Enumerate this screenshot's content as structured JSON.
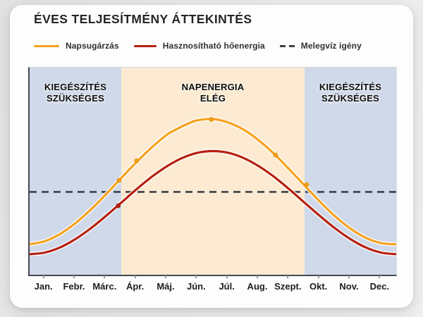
{
  "card": {
    "title": "ÉVES TELJESÍTMÉNY ÁTTEKINTÉS"
  },
  "legend": {
    "items": [
      {
        "label": "Napsugárzás",
        "color": "#f7a11d",
        "style": "solid"
      },
      {
        "label": "Hasznosítható hőenergia",
        "color": "#b7200f",
        "style": "solid"
      },
      {
        "label": "Melegvíz igény",
        "color": "#3c4148",
        "style": "dashed"
      }
    ]
  },
  "colors": {
    "zone_blue": "#cfd9ea",
    "zone_peach": "#fcebd2",
    "solar_orange": "#f7a11d",
    "thermal_red": "#b7200f",
    "demand_dash": "#3c4148",
    "axis": "#45494f",
    "card_background": "#fdfdfd",
    "page_background": "#ebeaea"
  },
  "chart_data": {
    "type": "line",
    "title": "ÉVES TELJESÍTMÉNY ÁTTEKINTÉS",
    "xlabel": "",
    "ylabel": "",
    "y_range_percent": [
      0,
      100
    ],
    "grid": false,
    "legend_position": "top",
    "x_categories": [
      "Jan.",
      "Febr.",
      "Márc.",
      "Ápr.",
      "Máj.",
      "Jún.",
      "Júl.",
      "Aug.",
      "Szept.",
      "Okt.",
      "Nov.",
      "Dec."
    ],
    "zones": [
      {
        "label": "KIEGÉSZÍTÉS\nSZÜKSÉGES",
        "from_month": 0,
        "to_month": 3,
        "color": "#cfd9ea"
      },
      {
        "label": "NAPENERGIA\nELÉG",
        "from_month": 3,
        "to_month": 9,
        "color": "#fcebd2"
      },
      {
        "label": "KIEGÉSZÍTÉS\nSZÜKSÉGES",
        "from_month": 9,
        "to_month": 12,
        "color": "#cfd9ea"
      }
    ],
    "demand_line": {
      "name": "Melegvíz igény",
      "value": 40,
      "color": "#3c4148",
      "dash": [
        10,
        7
      ]
    },
    "series": [
      {
        "name": "Napsugárzás",
        "color": "#f7a11d",
        "marker_stroke": "#e08d05",
        "points": [
          [
            0,
            14.7
          ],
          [
            0.5,
            16.2
          ],
          [
            1,
            19.7
          ],
          [
            1.5,
            24.9
          ],
          [
            2,
            31.4
          ],
          [
            2.5,
            38.8
          ],
          [
            3,
            46.7
          ],
          [
            3.5,
            54.4
          ],
          [
            4,
            61.5
          ],
          [
            4.5,
            67.7
          ],
          [
            4.75,
            69.8
          ],
          [
            5,
            71.7
          ],
          [
            5.25,
            73.4
          ],
          [
            5.5,
            74.6
          ],
          [
            6,
            75.2
          ],
          [
            6.5,
            73.5
          ],
          [
            7,
            70.1
          ],
          [
            7.5,
            64.9
          ],
          [
            8,
            58.4
          ],
          [
            8.5,
            50.9
          ],
          [
            9,
            43.1
          ],
          [
            9.5,
            35.3
          ],
          [
            10,
            28.2
          ],
          [
            10.5,
            22.3
          ],
          [
            11,
            17.9
          ],
          [
            11.5,
            15.3
          ],
          [
            12,
            14.7
          ]
        ],
        "markers": [
          [
            2.93,
            45.6
          ],
          [
            3.5,
            55.0
          ],
          [
            5.95,
            75.0
          ],
          [
            8.05,
            57.8
          ],
          [
            9.07,
            43.5
          ]
        ]
      },
      {
        "name": "Hasznosítható hőenergia",
        "color": "#b7200f",
        "marker_stroke": "#9a1a0c",
        "points": [
          [
            0,
            9.9
          ],
          [
            0.5,
            10.7
          ],
          [
            1,
            13.2
          ],
          [
            1.5,
            17.2
          ],
          [
            2,
            22.4
          ],
          [
            2.5,
            28.4
          ],
          [
            3,
            34.8
          ],
          [
            3.5,
            41.3
          ],
          [
            4,
            47.3
          ],
          [
            4.5,
            52.4
          ],
          [
            5,
            56.4
          ],
          [
            5.5,
            58.9
          ],
          [
            6,
            59.7
          ],
          [
            6.5,
            58.9
          ],
          [
            7,
            56.4
          ],
          [
            7.5,
            52.4
          ],
          [
            8,
            47.3
          ],
          [
            8.5,
            41.3
          ],
          [
            9,
            34.8
          ],
          [
            9.5,
            28.4
          ],
          [
            10,
            22.4
          ],
          [
            10.5,
            17.2
          ],
          [
            11,
            13.2
          ],
          [
            11.5,
            10.7
          ],
          [
            12,
            9.9
          ]
        ],
        "markers": [
          [
            2.9,
            33.3
          ]
        ]
      }
    ]
  }
}
